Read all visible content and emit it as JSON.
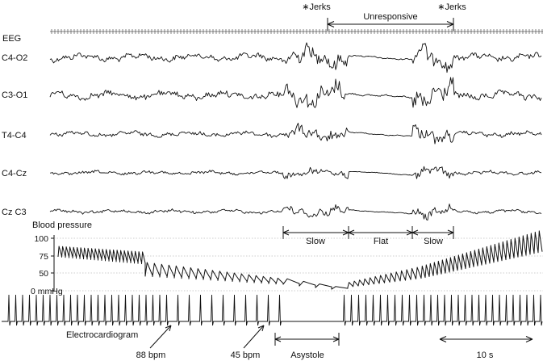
{
  "eeg": {
    "section_label": "EEG",
    "channels": [
      {
        "label": "C4-O2"
      },
      {
        "label": "C3-O1"
      },
      {
        "label": "T4-C4"
      },
      {
        "label": "C4-Cz"
      },
      {
        "label": "Cz C3"
      }
    ]
  },
  "events": {
    "jerks_left": "∗Jerks",
    "jerks_right": "∗Jerks",
    "unresponsive": "Unresponsive"
  },
  "phases": {
    "slow_1": "Slow",
    "flat": "Flat",
    "slow_2": "Slow"
  },
  "blood_pressure": {
    "label": "Blood pressure",
    "ticks": [
      "100",
      "75",
      "50",
      "0 mmHg"
    ]
  },
  "ecg": {
    "label": "Electrocardiogram",
    "rate_1": "88 bpm",
    "rate_2": "45 bpm",
    "asystole": "Asystole",
    "scale": "10 s"
  }
}
